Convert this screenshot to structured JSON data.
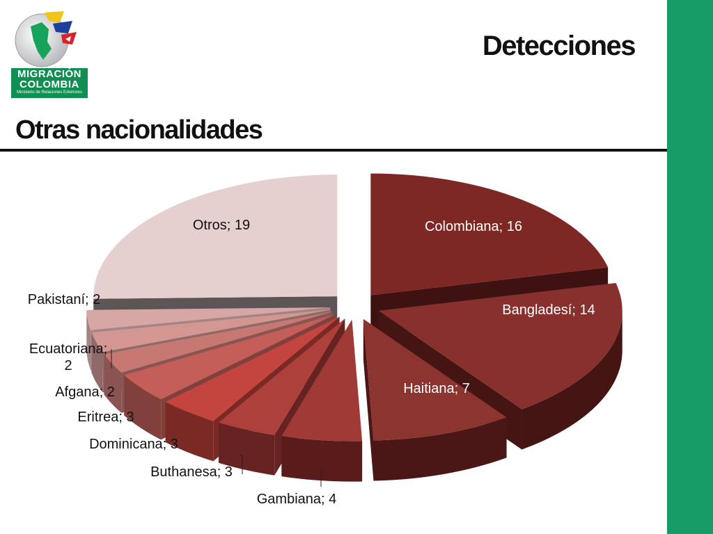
{
  "header": {
    "title": "Detecciones"
  },
  "logo": {
    "line1": "MIGRACIÓN",
    "line2": "COLOMBIA",
    "sub": "Ministerio de Relaciones Exteriores"
  },
  "section": {
    "title": "Otras nacionalidades"
  },
  "colors": {
    "accent": "#169c66",
    "rule": "#111111"
  },
  "chart_data": {
    "type": "pie",
    "labels": [
      "Colombiana",
      "Bangladesí",
      "Haitiana",
      "Gambiana",
      "Buthanesa",
      "Dominicana",
      "Eritrea",
      "Afgana",
      "Ecuatoriana",
      "Pakistaní",
      "Otros"
    ],
    "values": [
      16,
      14,
      7,
      4,
      3,
      3,
      3,
      2,
      2,
      2,
      19
    ],
    "data_labels": [
      "Colombiana; 16",
      "Bangladesí; 14",
      "Haitiana; 7",
      "Gambiana; 4",
      "Buthanesa; 3",
      "Dominicana; 3",
      "Eritrea; 3",
      "Afgana; 2",
      "Ecuatoriana;\n2",
      "Pakistaní; 2",
      "Otros; 19"
    ],
    "exploded": true,
    "legend": "none"
  }
}
